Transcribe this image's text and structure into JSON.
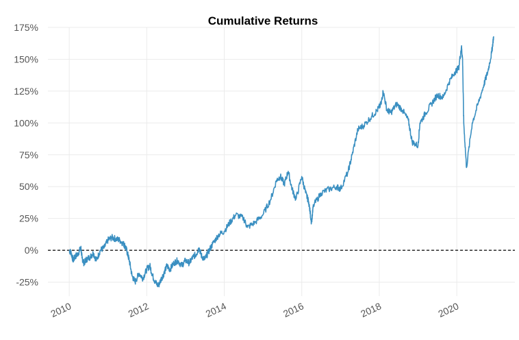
{
  "chart_data": {
    "type": "line",
    "title": "Cumulative Returns",
    "xlabel": "",
    "ylabel": "",
    "y_unit": "%",
    "xlim": [
      2009.45,
      2021.5
    ],
    "ylim": [
      -36,
      175
    ],
    "x_ticks": [
      2010,
      2012,
      2014,
      2016,
      2018,
      2020
    ],
    "x_tick_labels": [
      "2010",
      "2012",
      "2014",
      "2016",
      "2018",
      "2020"
    ],
    "y_ticks": [
      -25,
      0,
      25,
      50,
      75,
      100,
      125,
      150,
      175
    ],
    "y_tick_labels": [
      "-25%",
      "0%",
      "25%",
      "50%",
      "75%",
      "100%",
      "125%",
      "150%",
      "175%"
    ],
    "grid": true,
    "reference_line": {
      "y": 0,
      "style": "dashed",
      "color": "#000000"
    },
    "series": [
      {
        "color": "#3a8fc1",
        "x": [
          2010.0,
          2010.05,
          2010.1,
          2010.15,
          2010.22,
          2010.3,
          2010.33,
          2010.38,
          2010.45,
          2010.55,
          2010.62,
          2010.7,
          2010.8,
          2010.9,
          2011.0,
          2011.1,
          2011.2,
          2011.3,
          2011.4,
          2011.45,
          2011.5,
          2011.55,
          2011.62,
          2011.7,
          2011.8,
          2011.9,
          2012.0,
          2012.08,
          2012.15,
          2012.22,
          2012.3,
          2012.38,
          2012.45,
          2012.52,
          2012.6,
          2012.7,
          2012.8,
          2012.9,
          2013.0,
          2013.1,
          2013.2,
          2013.28,
          2013.35,
          2013.42,
          2013.5,
          2013.58,
          2013.7,
          2013.85,
          2014.0,
          2014.15,
          2014.3,
          2014.5,
          2014.6,
          2014.8,
          2015.0,
          2015.2,
          2015.35,
          2015.45,
          2015.55,
          2015.65,
          2015.75,
          2015.85,
          2016.0,
          2016.1,
          2016.18,
          2016.25,
          2016.3,
          2016.5,
          2016.7,
          2016.9,
          2017.0,
          2017.2,
          2017.3,
          2017.45,
          2017.6,
          2017.8,
          2017.95,
          2018.05,
          2018.1,
          2018.2,
          2018.3,
          2018.45,
          2018.6,
          2018.75,
          2018.85,
          2019.0,
          2019.05,
          2019.2,
          2019.35,
          2019.5,
          2019.65,
          2019.8,
          2019.95,
          2020.05,
          2020.12,
          2020.15,
          2020.18,
          2020.25,
          2020.4,
          2020.55,
          2020.7,
          2020.8,
          2020.9,
          2020.95
        ],
        "y": [
          0,
          -2,
          -8,
          -5,
          -3,
          2,
          -6,
          -10,
          -7,
          -5,
          -2,
          -8,
          0,
          2,
          8,
          10,
          9,
          8,
          5,
          3,
          -2,
          -8,
          -20,
          -25,
          -18,
          -22,
          -15,
          -12,
          -20,
          -25,
          -28,
          -22,
          -18,
          -12,
          -15,
          -10,
          -8,
          -12,
          -8,
          -10,
          -5,
          -3,
          2,
          -5,
          -7,
          -2,
          5,
          12,
          15,
          22,
          28,
          25,
          18,
          22,
          28,
          40,
          55,
          58,
          52,
          62,
          48,
          40,
          58,
          45,
          38,
          22,
          35,
          45,
          48,
          50,
          48,
          62,
          75,
          95,
          98,
          105,
          110,
          115,
          125,
          110,
          108,
          115,
          110,
          102,
          85,
          82,
          100,
          108,
          115,
          122,
          120,
          132,
          140,
          143,
          160,
          150,
          100,
          65,
          100,
          115,
          130,
          140,
          155,
          168
        ]
      }
    ]
  }
}
